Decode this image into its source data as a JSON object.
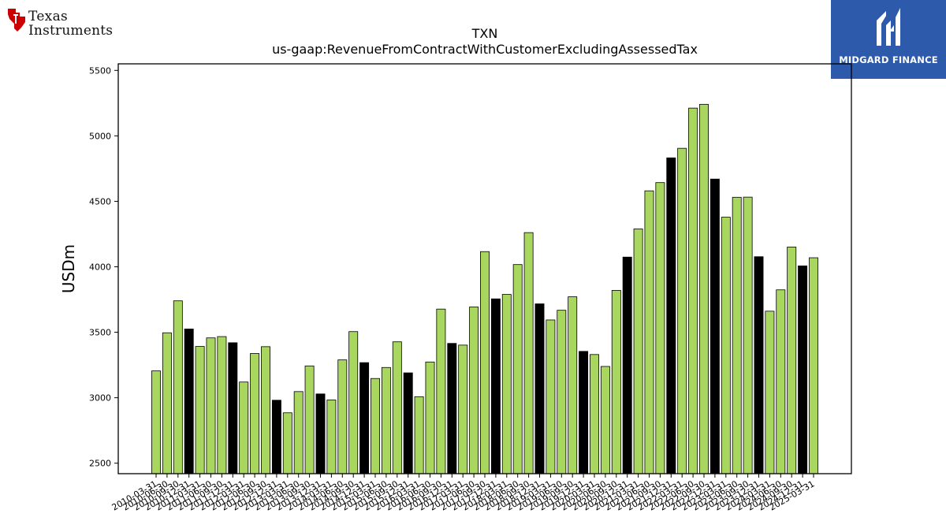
{
  "logos": {
    "left": {
      "line1": "Texas",
      "line2": "Instruments"
    },
    "right": {
      "text": "MIDGARD FINANCE"
    }
  },
  "colors": {
    "bar_default": "#a8d65e",
    "bar_highlight": "#000000",
    "bar_edge": "#000000",
    "brand_red": "#cc0000",
    "brand_blue": "#2d5aaa"
  },
  "chart_data": {
    "type": "bar",
    "title": "TXN",
    "subtitle": "us-gaap:RevenueFromContractWithCustomerExcludingAssessedTax",
    "xlabel": "",
    "ylabel": "USDm",
    "ylim": [
      2420,
      5550
    ],
    "yticks": [
      2500,
      3000,
      3500,
      4000,
      4500,
      5000,
      5500
    ],
    "grid": false,
    "highlight_rule": "fiscal year end (12-31) bars drawn in black",
    "categories": [
      "2010-03-31",
      "2010-06-30",
      "2010-09-30",
      "2010-12-31",
      "2011-03-31",
      "2011-06-30",
      "2011-09-30",
      "2011-12-31",
      "2012-03-31",
      "2012-06-30",
      "2012-09-30",
      "2012-12-31",
      "2013-03-31",
      "2013-06-30",
      "2013-09-30",
      "2013-12-31",
      "2014-03-31",
      "2014-06-30",
      "2014-09-30",
      "2014-12-31",
      "2015-03-31",
      "2015-06-30",
      "2015-09-30",
      "2015-12-31",
      "2016-03-31",
      "2016-06-30",
      "2016-09-30",
      "2016-12-31",
      "2017-03-31",
      "2017-06-30",
      "2017-09-30",
      "2017-12-31",
      "2018-03-31",
      "2018-06-30",
      "2018-09-30",
      "2018-12-31",
      "2019-03-31",
      "2019-06-30",
      "2019-09-30",
      "2019-12-31",
      "2020-03-31",
      "2020-06-30",
      "2020-09-30",
      "2020-12-31",
      "2021-03-31",
      "2021-06-30",
      "2021-09-30",
      "2021-12-31",
      "2022-03-31",
      "2022-06-30",
      "2022-09-30",
      "2022-12-31",
      "2023-03-31",
      "2023-06-30",
      "2023-09-30",
      "2023-12-31",
      "2024-03-31",
      "2024-06-30",
      "2024-09-30",
      "2024-12-31",
      "2025-03-31"
    ],
    "values": [
      3205,
      3496,
      3740,
      3525,
      3392,
      3457,
      3467,
      3420,
      3120,
      3338,
      3390,
      2981,
      2885,
      3047,
      3243,
      3029,
      2983,
      3289,
      3505,
      3268,
      3147,
      3231,
      3427,
      3190,
      3008,
      3273,
      3677,
      3415,
      3402,
      3693,
      4116,
      3755,
      3789,
      4017,
      4261,
      3717,
      3594,
      3668,
      3771,
      3354,
      3330,
      3239,
      3820,
      4074,
      4289,
      4580,
      4643,
      4832,
      4905,
      5212,
      5241,
      4670,
      4379,
      4531,
      4532,
      4077,
      3661,
      3824,
      4151,
      4007,
      4069
    ],
    "highlight": [
      false,
      false,
      false,
      true,
      false,
      false,
      false,
      true,
      false,
      false,
      false,
      true,
      false,
      false,
      false,
      true,
      false,
      false,
      false,
      true,
      false,
      false,
      false,
      true,
      false,
      false,
      false,
      true,
      false,
      false,
      false,
      true,
      false,
      false,
      false,
      true,
      false,
      false,
      false,
      true,
      false,
      false,
      false,
      true,
      false,
      false,
      false,
      true,
      false,
      false,
      false,
      true,
      false,
      false,
      false,
      true,
      false,
      false,
      false,
      true,
      false
    ]
  }
}
